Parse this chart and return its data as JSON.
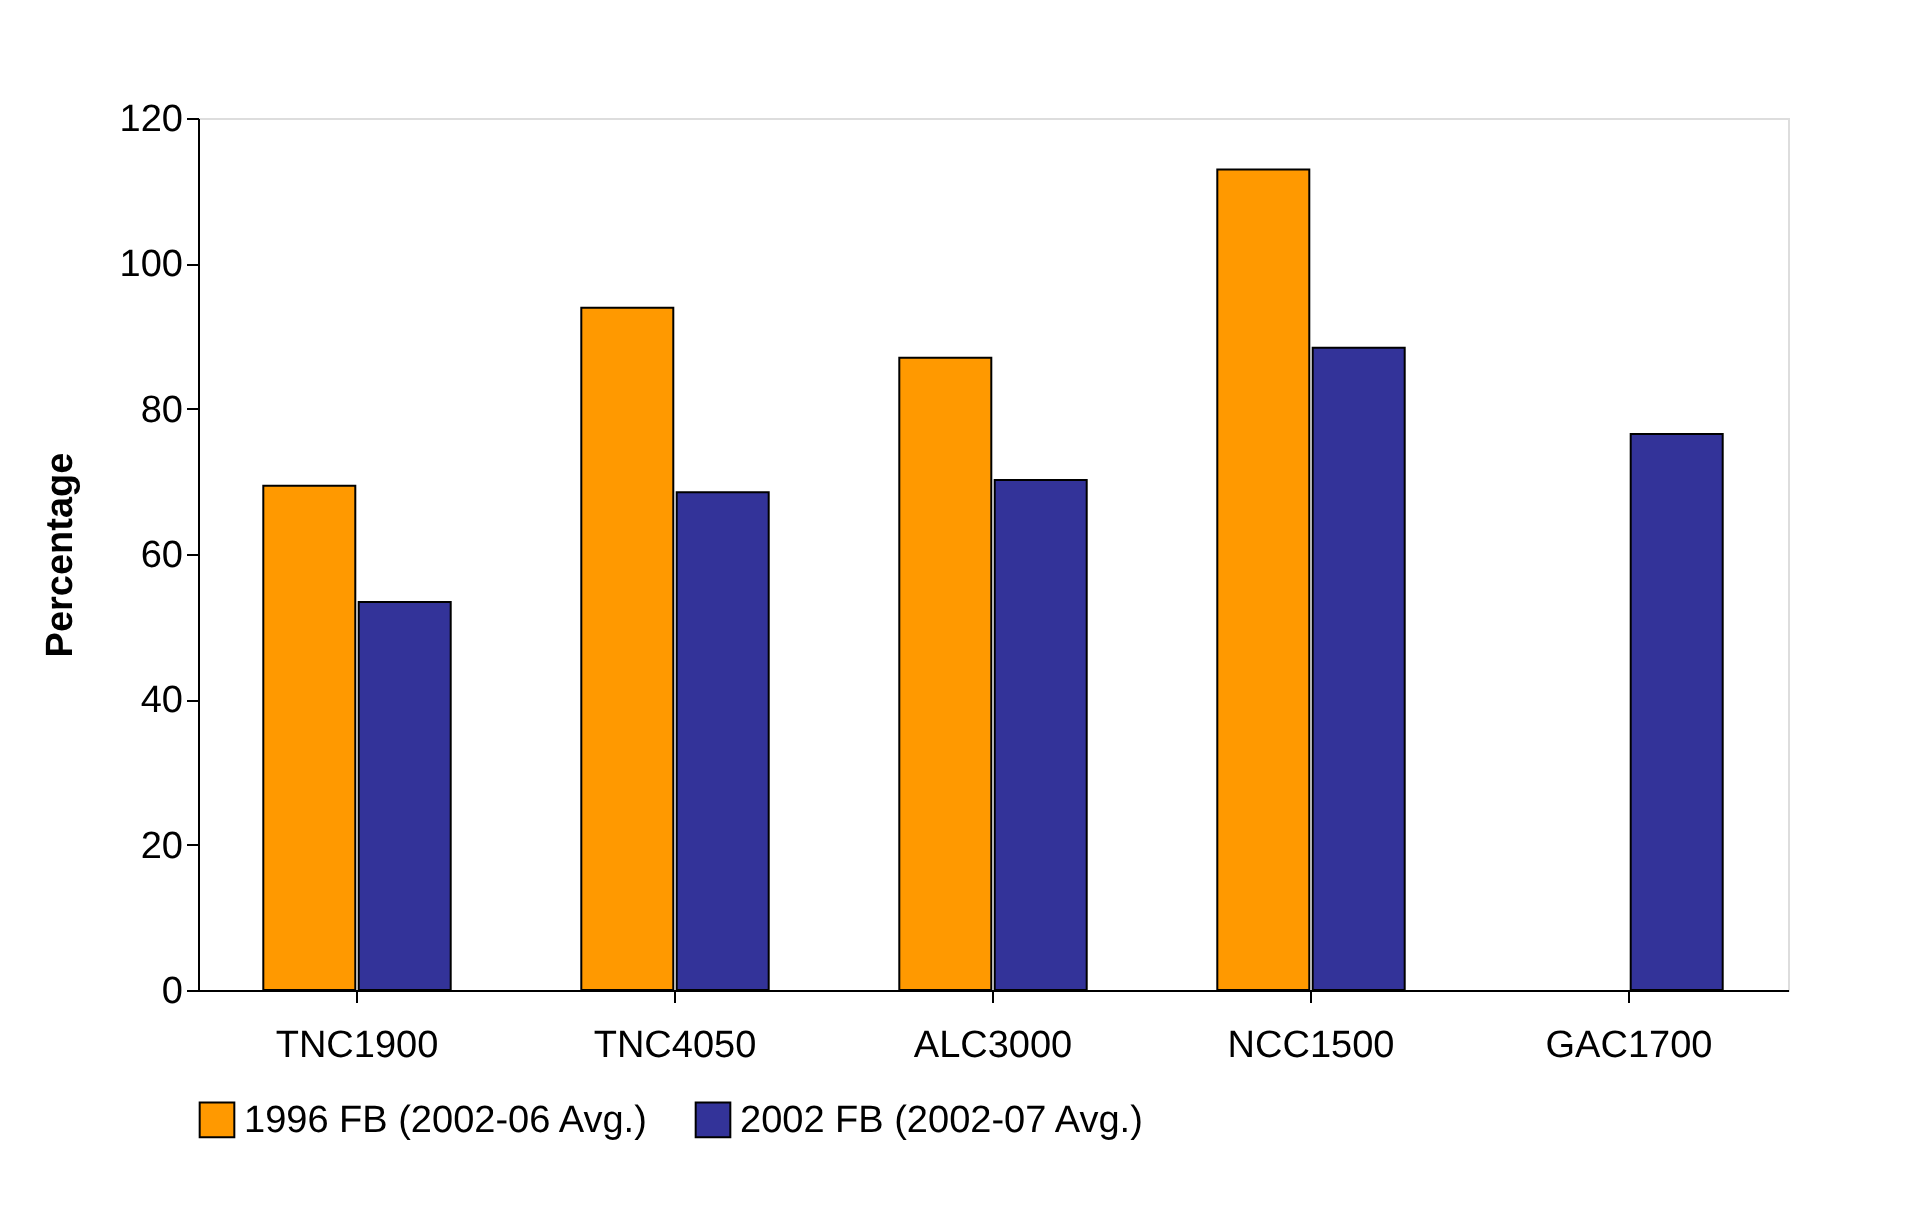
{
  "chart_data": {
    "type": "bar",
    "ylabel": "Percentage",
    "categories": [
      "TNC1900",
      "TNC4050",
      "ALC3000",
      "NCC1500",
      "GAC1700"
    ],
    "series": [
      {
        "name": "1996 FB (2002-06 Avg.)",
        "color": "#ff9900",
        "values": [
          69.4,
          93.9,
          87.0,
          112.9,
          null
        ]
      },
      {
        "name": "2002 FB (2002-07 Avg.)",
        "color": "#333399",
        "values": [
          53.4,
          68.5,
          70.2,
          88.4,
          76.5
        ]
      }
    ],
    "ylim": [
      0,
      120
    ],
    "yticks": [
      0,
      20,
      40,
      60,
      80,
      100,
      120
    ],
    "grid": false,
    "legend": "bottom"
  }
}
